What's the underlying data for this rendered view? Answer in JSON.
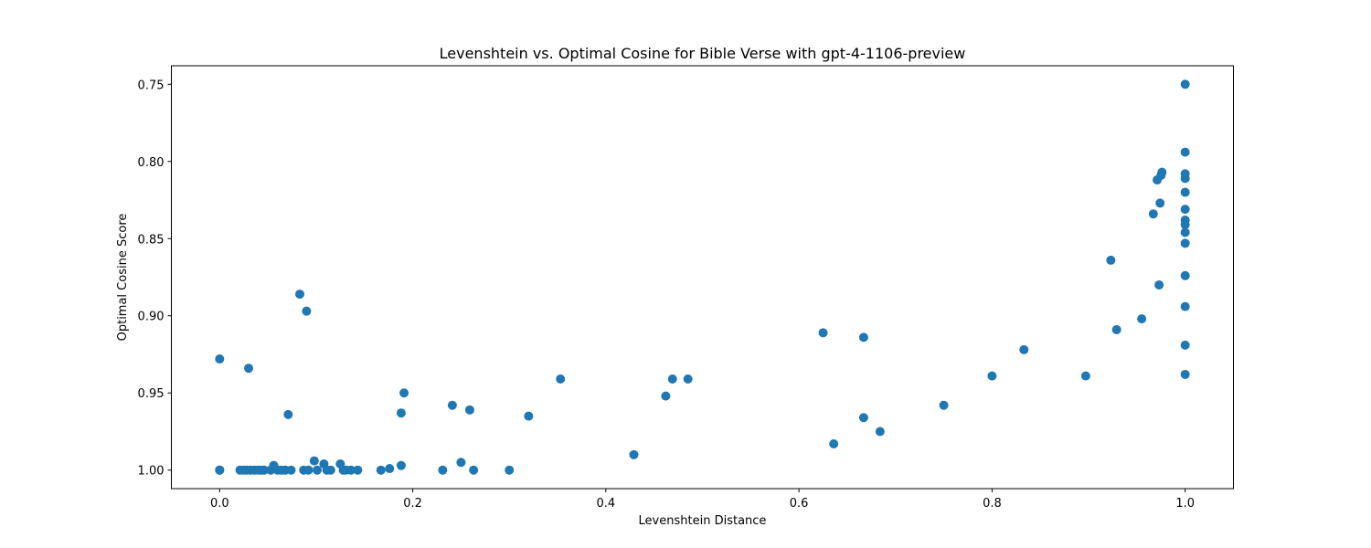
{
  "chart_data": {
    "type": "scatter",
    "title": "Levenshtein vs. Optimal Cosine for Bible Verse with gpt-4-1106-preview",
    "xlabel": "Levenshtein Distance",
    "ylabel": "Optimal Cosine Score",
    "xlim": [
      -0.05,
      1.05
    ],
    "ylim": [
      1.012,
      0.738
    ],
    "y_inverted": true,
    "grid": false,
    "legend": "none",
    "color": "#1f77b4",
    "x_ticks": [
      0.0,
      0.2,
      0.4,
      0.6,
      0.8,
      1.0
    ],
    "x_tick_labels": [
      "0.0",
      "0.2",
      "0.4",
      "0.6",
      "0.8",
      "1.0"
    ],
    "y_ticks": [
      0.75,
      0.8,
      0.85,
      0.9,
      0.95,
      1.0
    ],
    "y_tick_labels": [
      "0.75",
      "0.80",
      "0.85",
      "0.90",
      "0.95",
      "1.00"
    ],
    "points": [
      [
        0.0,
        1.0
      ],
      [
        0.0,
        1.0
      ],
      [
        0.0,
        1.0
      ],
      [
        0.0,
        0.928
      ],
      [
        0.021,
        1.0
      ],
      [
        0.025,
        1.0
      ],
      [
        0.028,
        1.0
      ],
      [
        0.03,
        0.934
      ],
      [
        0.032,
        1.0
      ],
      [
        0.036,
        1.0
      ],
      [
        0.04,
        1.0
      ],
      [
        0.043,
        1.0
      ],
      [
        0.046,
        1.0
      ],
      [
        0.053,
        1.0
      ],
      [
        0.056,
        0.997
      ],
      [
        0.06,
        1.0
      ],
      [
        0.064,
        1.0
      ],
      [
        0.068,
        1.0
      ],
      [
        0.071,
        0.964
      ],
      [
        0.074,
        1.0
      ],
      [
        0.083,
        0.886
      ],
      [
        0.087,
        1.0
      ],
      [
        0.09,
        0.897
      ],
      [
        0.092,
        1.0
      ],
      [
        0.098,
        0.994
      ],
      [
        0.101,
        1.0
      ],
      [
        0.108,
        0.996
      ],
      [
        0.111,
        1.0
      ],
      [
        0.115,
        1.0
      ],
      [
        0.125,
        0.996
      ],
      [
        0.128,
        1.0
      ],
      [
        0.131,
        1.0
      ],
      [
        0.136,
        1.0
      ],
      [
        0.143,
        1.0
      ],
      [
        0.167,
        1.0
      ],
      [
        0.176,
        0.999
      ],
      [
        0.188,
        0.997
      ],
      [
        0.188,
        0.963
      ],
      [
        0.191,
        0.95
      ],
      [
        0.231,
        1.0
      ],
      [
        0.241,
        0.958
      ],
      [
        0.25,
        0.995
      ],
      [
        0.259,
        0.961
      ],
      [
        0.263,
        1.0
      ],
      [
        0.3,
        1.0
      ],
      [
        0.32,
        0.965
      ],
      [
        0.353,
        0.941
      ],
      [
        0.429,
        0.99
      ],
      [
        0.462,
        0.952
      ],
      [
        0.469,
        0.941
      ],
      [
        0.485,
        0.941
      ],
      [
        0.625,
        0.911
      ],
      [
        0.636,
        0.983
      ],
      [
        0.667,
        0.914
      ],
      [
        0.667,
        0.966
      ],
      [
        0.684,
        0.975
      ],
      [
        0.75,
        0.958
      ],
      [
        0.8,
        0.939
      ],
      [
        0.833,
        0.922
      ],
      [
        0.897,
        0.939
      ],
      [
        0.923,
        0.864
      ],
      [
        0.929,
        0.909
      ],
      [
        0.955,
        0.902
      ],
      [
        0.967,
        0.834
      ],
      [
        0.971,
        0.812
      ],
      [
        0.973,
        0.88
      ],
      [
        0.974,
        0.827
      ],
      [
        0.975,
        0.809
      ],
      [
        0.976,
        0.807
      ],
      [
        1.0,
        0.75
      ],
      [
        1.0,
        0.794
      ],
      [
        1.0,
        0.808
      ],
      [
        1.0,
        0.811
      ],
      [
        1.0,
        0.82
      ],
      [
        1.0,
        0.831
      ],
      [
        1.0,
        0.838
      ],
      [
        1.0,
        0.841
      ],
      [
        1.0,
        0.846
      ],
      [
        1.0,
        0.853
      ],
      [
        1.0,
        0.874
      ],
      [
        1.0,
        0.894
      ],
      [
        1.0,
        0.919
      ],
      [
        1.0,
        0.938
      ]
    ]
  }
}
